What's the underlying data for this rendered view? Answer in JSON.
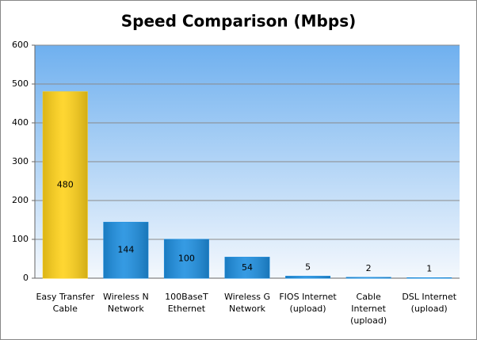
{
  "chart_data": {
    "type": "bar",
    "title": "Speed Comparison (Mbps)",
    "categories": [
      "Easy Transfer\nCable",
      "Wireless N\nNetwork",
      "100BaseT\nEthernet",
      "Wireless G\nNetwork",
      "FIOS Internet\n(upload)",
      "Cable\nInternet\n(upload)",
      "DSL Internet\n(upload)"
    ],
    "values": [
      480,
      144,
      100,
      54,
      5,
      2,
      1
    ],
    "colors": [
      "#ffd21a",
      "#1e8fe0",
      "#1e8fe0",
      "#1e8fe0",
      "#1e8fe0",
      "#1e8fe0",
      "#1e8fe0"
    ],
    "ylim": [
      0,
      600
    ],
    "yticks": [
      0,
      100,
      200,
      300,
      400,
      500,
      600
    ],
    "grid": true
  }
}
